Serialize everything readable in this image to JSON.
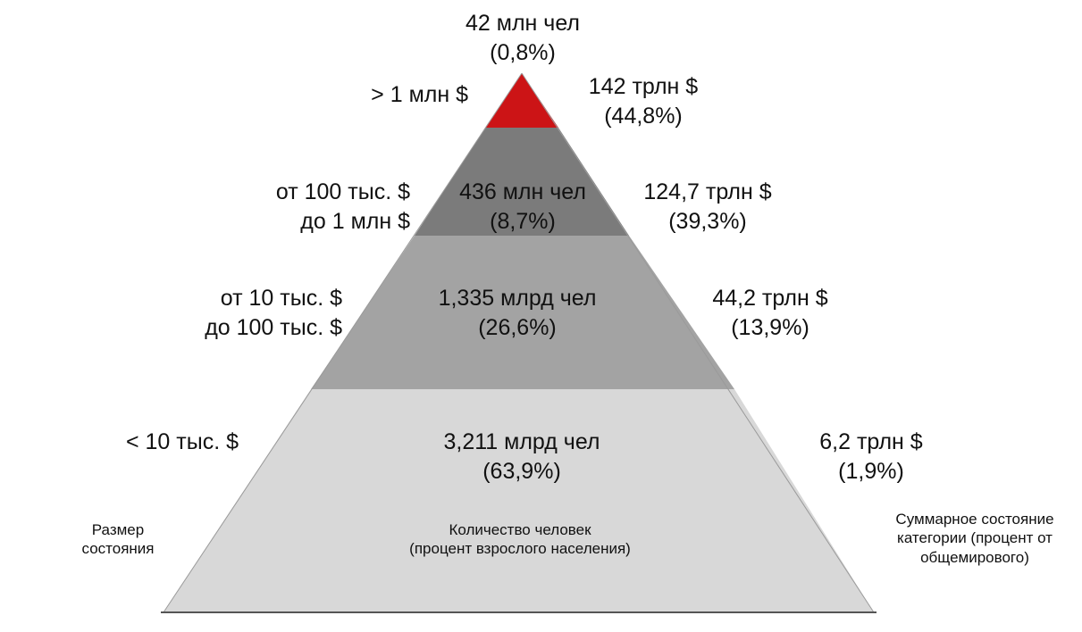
{
  "tiers": [
    {
      "id": "top",
      "wealth": [
        "> 1 млн $"
      ],
      "people": [
        "42 млн чел",
        "(0,8%)"
      ],
      "total": [
        "142 трлн $",
        "(44,8%)"
      ],
      "color": "#cc1416"
    },
    {
      "id": "upper",
      "wealth": [
        "от 100 тыс. $",
        "до 1 млн $"
      ],
      "people": [
        "436 млн чел",
        "(8,7%)"
      ],
      "total": [
        "124,7 трлн $",
        "(39,3%)"
      ],
      "color": "#7b7b7b"
    },
    {
      "id": "middle",
      "wealth": [
        "от 10 тыс. $",
        "до 100 тыс. $"
      ],
      "people": [
        "1,335 млрд чел",
        "(26,6%)"
      ],
      "total": [
        "44,2 трлн $",
        "(13,9%)"
      ],
      "color": "#a3a3a3"
    },
    {
      "id": "base",
      "wealth": [
        "< 10 тыс. $"
      ],
      "people": [
        "3,211 млрд чел",
        "(63,9%)"
      ],
      "total": [
        "6,2 трлн $",
        "(1,9%)"
      ],
      "color": "#d8d8d8"
    }
  ],
  "legend": {
    "wealth_size": [
      "Размер",
      "состояния"
    ],
    "people_count": [
      "Количество человек",
      "(процент взрослого населения)"
    ],
    "total_wealth": [
      "Суммарное состояние",
      "категории (процент от",
      "общемирового)"
    ]
  }
}
